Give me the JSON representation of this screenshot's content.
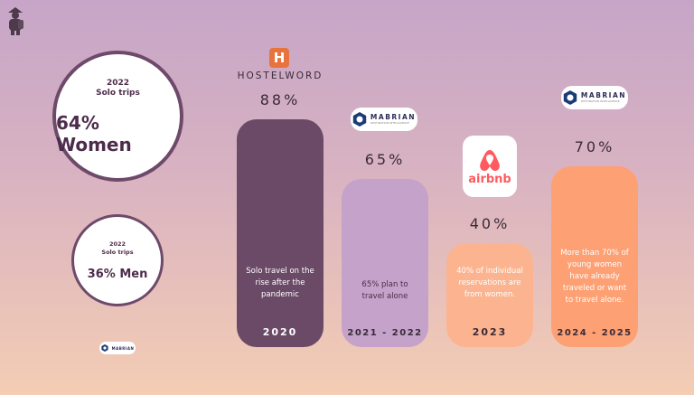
{
  "icons": {
    "traveler": "traveler-icon",
    "hostelworld": "hostelworld-logo",
    "mabrian": "mabrian-logo",
    "airbnb": "airbnb-logo"
  },
  "circles": [
    {
      "year": "2022",
      "subtitle": "Solo trips",
      "main": "64% Women"
    },
    {
      "year": "2022",
      "subtitle": "Solo trips",
      "main": "36% Men"
    }
  ],
  "logos": {
    "hostelworld_letter": "H",
    "hostelworld_text": "HOSTELWORD",
    "mabrian_text": "MABRIAN",
    "mabrian_tagline": "DESTINATION INTELLIGENCE",
    "airbnb_text": "airbnb"
  },
  "chart_data": {
    "type": "bar",
    "categories": [
      "2020",
      "2021 - 2022",
      "2023",
      "2024 - 2025"
    ],
    "values": [
      88,
      65,
      40,
      70
    ],
    "labels": [
      "88%",
      "65%",
      "40%",
      "70%"
    ],
    "descriptions": [
      "Solo travel on the rise after the pandemic",
      "65% plan to travel alone",
      "40% of individual reservations are from women.",
      "More than 70% of young women have already traveled or want to travel alone."
    ],
    "colors": [
      "#6b4a67",
      "#c4a2c9",
      "#fbb48f",
      "#fda073"
    ]
  }
}
